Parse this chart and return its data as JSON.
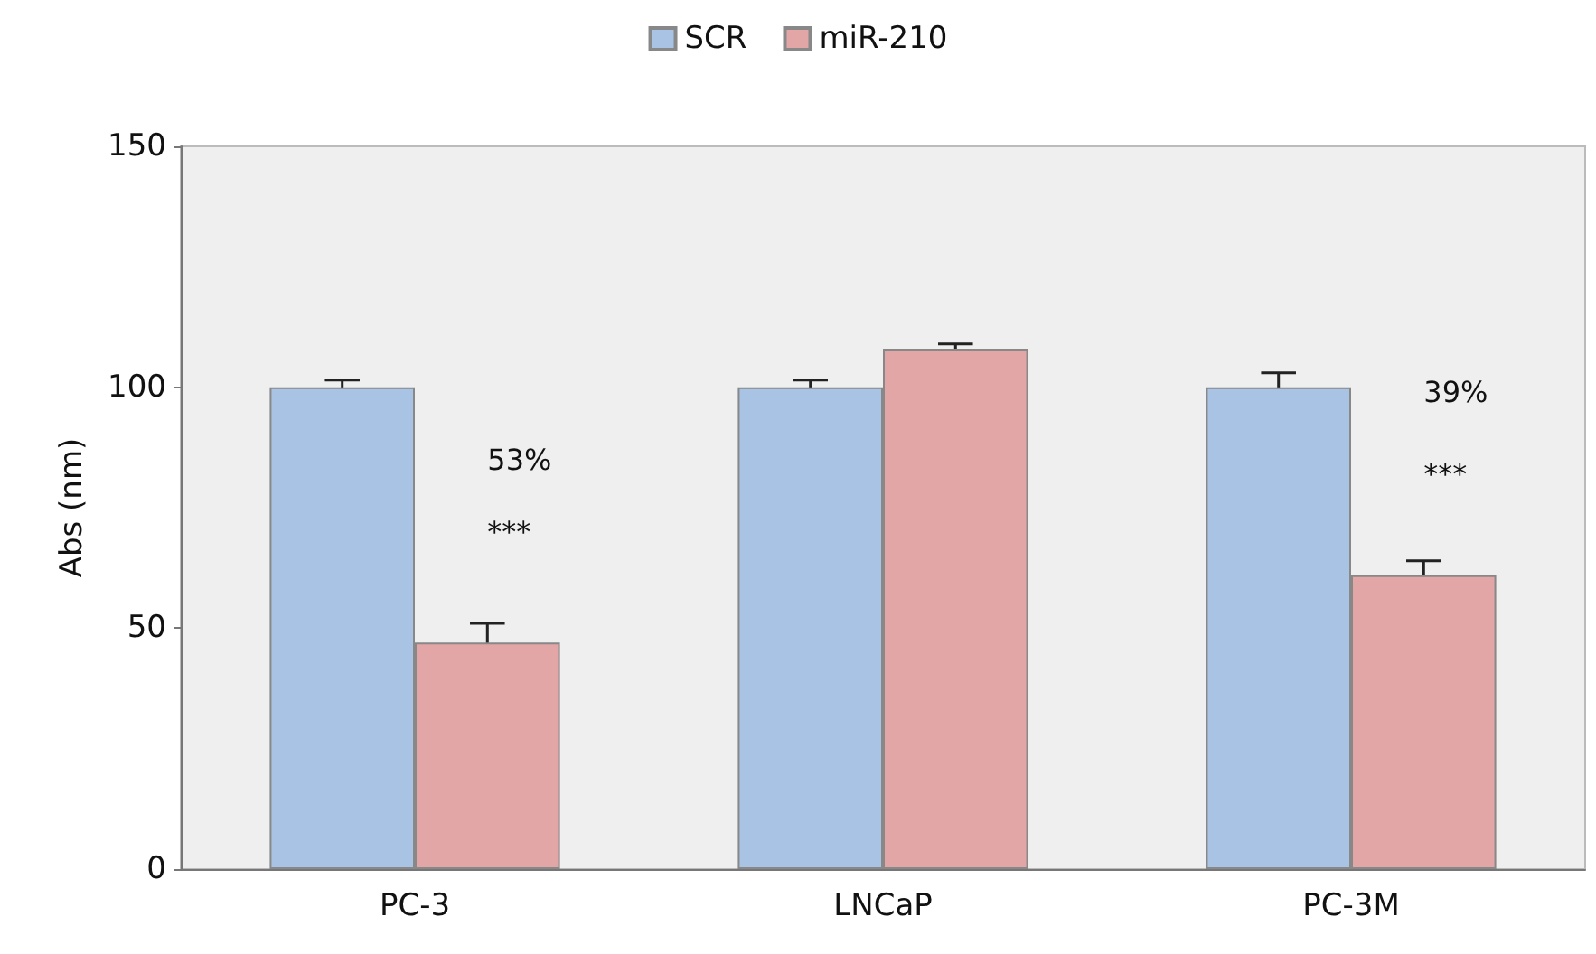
{
  "chart_data": {
    "type": "bar",
    "ylabel": "Abs (nm)",
    "categories": [
      "PC-3",
      "LNCaP",
      "PC-3M"
    ],
    "series": [
      {
        "name": "SCR",
        "color": "#a8c3e3",
        "values": [
          100,
          100,
          100
        ],
        "errors": [
          1.5,
          1.5,
          3
        ]
      },
      {
        "name": "miR-210",
        "color": "#e2a6a6",
        "values": [
          47,
          108,
          61
        ],
        "errors": [
          4,
          1,
          3
        ]
      }
    ],
    "ylim": [
      0,
      150
    ],
    "yticks": [
      0,
      50,
      100,
      150
    ],
    "grid": false,
    "legend": "top",
    "annotations": [
      {
        "text": "53%",
        "x": "PC-3",
        "y": 85
      },
      {
        "text": "***",
        "x": "PC-3",
        "y": 70
      },
      {
        "text": "39%",
        "x": "PC-3M",
        "y": 99
      },
      {
        "text": "***",
        "x": "PC-3M",
        "y": 82
      }
    ]
  }
}
